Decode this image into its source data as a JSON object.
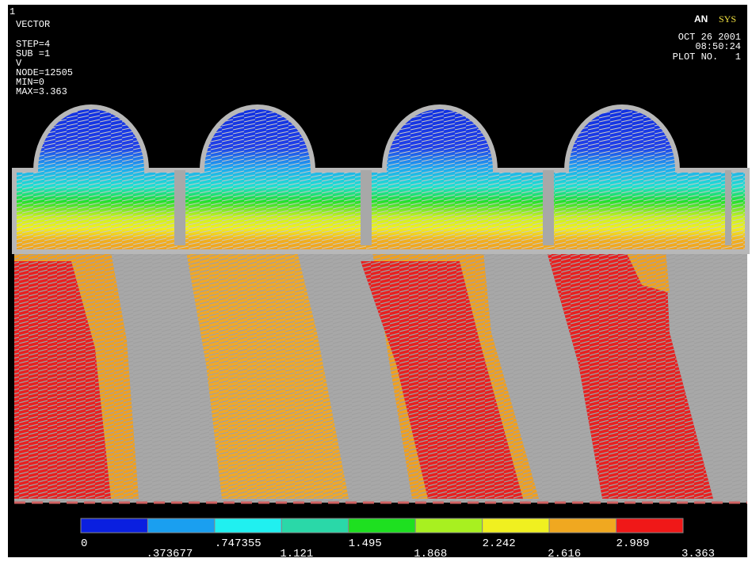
{
  "header": {
    "window_number": "1",
    "plot_type": "VECTOR",
    "lines": [
      "STEP=4",
      "SUB =1",
      "V",
      "NODE=12505",
      "MIN=0",
      "MAX=3.363"
    ]
  },
  "logo": {
    "part1": "AN",
    "part2": "SYS"
  },
  "stamp": {
    "date": "OCT 26 2001",
    "time": "08:50:24",
    "plot": "PLOT NO.   1"
  },
  "legend": {
    "colors": [
      "#0a1fe0",
      "#1a9ff0",
      "#20f0f0",
      "#2ad8a8",
      "#1ee020",
      "#a8f020",
      "#f0f020",
      "#f0a820",
      "#f01818"
    ],
    "labels": [
      "0",
      ".373677",
      ".747355",
      "1.121",
      "1.495",
      "1.868",
      "2.242",
      "2.616",
      "2.989",
      "3.363"
    ]
  }
}
